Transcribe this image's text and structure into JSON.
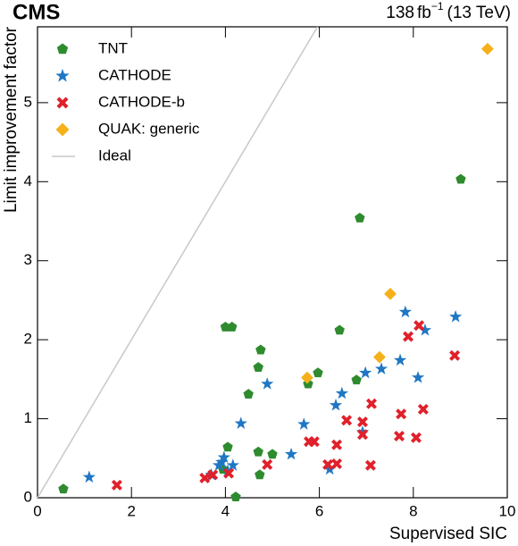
{
  "chart_data": {
    "type": "scatter",
    "annotations": {
      "experiment": "CMS",
      "lumi": "138",
      "lumi_unit": "fb",
      "lumi_exp": "−1",
      "energy": "(13 TeV)"
    },
    "x_label": "Supervised SIC",
    "y_label": "Limit improvement factor",
    "xlim": [
      0,
      10
    ],
    "ylim": [
      0,
      5.96
    ],
    "xticks": [
      0,
      2,
      4,
      6,
      8,
      10
    ],
    "yticks": [
      0,
      1,
      2,
      3,
      4,
      5
    ],
    "legend": "upper left",
    "reference_line": {
      "name": "Ideal",
      "color": "#c8c8c8"
    },
    "series": [
      {
        "name": "TNT",
        "color": "#2e8b2e",
        "marker": "pentagon",
        "x": [
          0.55,
          4.0,
          4.14,
          4.22,
          4.05,
          3.95,
          4.73,
          4.75,
          4.7,
          4.49,
          5.0,
          4.7,
          5.76,
          5.97,
          6.43,
          6.86,
          6.79,
          9.01
        ],
        "values": [
          0.11,
          2.16,
          2.16,
          0.01,
          0.64,
          0.36,
          0.29,
          1.87,
          1.65,
          1.31,
          0.55,
          0.58,
          1.44,
          1.58,
          2.12,
          3.54,
          1.49,
          4.03
        ]
      },
      {
        "name": "CATHODE",
        "color": "#1f77c4",
        "marker": "star",
        "x": [
          1.1,
          3.7,
          3.86,
          3.92,
          3.97,
          4.05,
          4.16,
          4.33,
          4.89,
          5.4,
          5.67,
          6.35,
          6.48,
          6.22,
          6.92,
          6.98,
          7.32,
          7.72,
          7.83,
          8.1,
          8.25,
          8.9
        ],
        "values": [
          0.26,
          0.29,
          0.41,
          0.45,
          0.51,
          0.34,
          0.41,
          0.94,
          1.44,
          0.55,
          0.93,
          1.17,
          1.32,
          0.36,
          0.83,
          1.58,
          1.63,
          1.74,
          2.35,
          1.52,
          2.12,
          2.29
        ]
      },
      {
        "name": "CATHODE-b",
        "color": "#e0202a",
        "marker": "x",
        "x": [
          1.69,
          3.56,
          3.73,
          4.07,
          4.89,
          5.78,
          5.89,
          6.18,
          6.37,
          6.37,
          6.58,
          6.92,
          6.92,
          7.11,
          7.09,
          7.74,
          7.7,
          7.89,
          8.12,
          8.06,
          8.21,
          8.88
        ],
        "values": [
          0.16,
          0.25,
          0.29,
          0.31,
          0.42,
          0.71,
          0.71,
          0.42,
          0.43,
          0.67,
          0.98,
          0.96,
          0.8,
          1.19,
          0.41,
          1.06,
          0.78,
          2.04,
          2.18,
          0.76,
          1.12,
          1.8
        ]
      },
      {
        "name": "QUAK: generic",
        "color": "#f5b01a",
        "marker": "diamond",
        "x": [
          5.74,
          7.28,
          7.51,
          9.58
        ],
        "values": [
          1.52,
          1.78,
          2.58,
          5.68
        ]
      }
    ]
  }
}
